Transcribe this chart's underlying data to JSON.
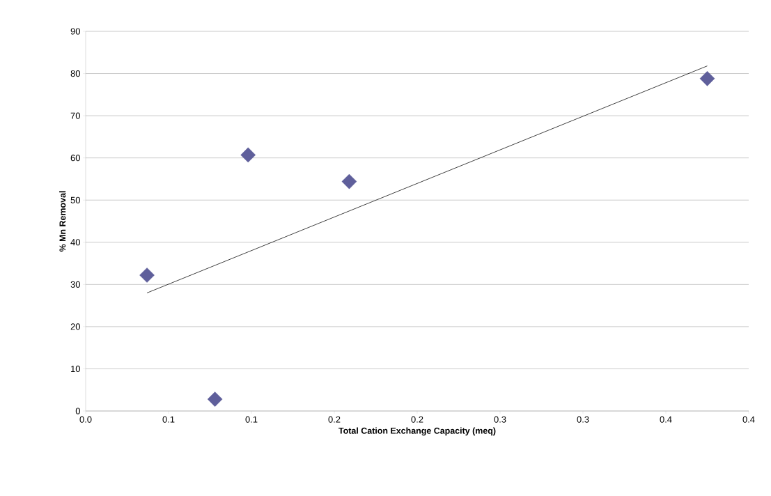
{
  "chart_data": {
    "type": "scatter",
    "xlabel": "Total Cation Exchange Capacity (meq)",
    "ylabel": "% Mn Removal",
    "series": [
      {
        "color": "#5f5f9b",
        "marker": "diamond",
        "x": [
          0.037,
          0.078,
          0.098,
          0.159,
          0.375
        ],
        "values": [
          32.2,
          2.8,
          60.7,
          54.4,
          78.8
        ]
      },
      {
        "type": "line",
        "color": "#000000",
        "marker": "none",
        "x": [
          0.037,
          0.375
        ],
        "values": [
          28.0,
          81.8
        ]
      }
    ],
    "xlim": [
      0,
      0.4
    ],
    "ylim": [
      0,
      90
    ],
    "xticks": [
      {
        "value": 0,
        "label": "0.0"
      },
      {
        "value": 0.05,
        "label": "0.1"
      },
      {
        "value": 0.1,
        "label": "0.1"
      },
      {
        "value": 0.15,
        "label": "0.2"
      },
      {
        "value": 0.2,
        "label": "0.2"
      },
      {
        "value": 0.25,
        "label": "0.3"
      },
      {
        "value": 0.3,
        "label": "0.3"
      },
      {
        "value": 0.35,
        "label": "0.4"
      },
      {
        "value": 0.4,
        "label": "0.4"
      }
    ],
    "yticks": [
      0,
      10,
      20,
      30,
      40,
      50,
      60,
      70,
      80,
      90
    ],
    "grid": "y"
  }
}
